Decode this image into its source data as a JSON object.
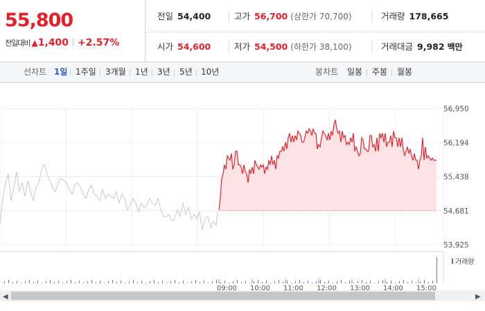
{
  "summary": {
    "current_price": "55,800",
    "change_label": "전일대비",
    "change_arrow": "▲",
    "change_amount": "1,400",
    "change_rate": "+2.57%",
    "colors": {
      "up": "#e5202b",
      "down": "#1a5bd6"
    },
    "stats_row1": [
      {
        "label": "전일",
        "value": "54,400",
        "sub": "",
        "tone": "neutral"
      },
      {
        "label": "고가",
        "value": "56,700",
        "sub": "(상한가 70,700)",
        "tone": "up"
      },
      {
        "label": "거래량",
        "value": "178,665",
        "sub": "",
        "tone": "neutral"
      }
    ],
    "stats_row2": [
      {
        "label": "시가",
        "value": "54,600",
        "sub": "",
        "tone": "up"
      },
      {
        "label": "저가",
        "value": "54,500",
        "sub": "(하한가 38,100)",
        "tone": "up"
      },
      {
        "label": "거래대금",
        "value": "9,982",
        "sub": "백만",
        "tone": "neutral"
      }
    ]
  },
  "toolbar": {
    "line_label": "선차트",
    "line_periods": [
      "1일",
      "1주일",
      "3개월",
      "1년",
      "3년",
      "5년",
      "10년"
    ],
    "active_period": "1일",
    "candle_label": "봉차트",
    "candle_periods": [
      "일봉",
      "주봉",
      "월봉"
    ]
  },
  "chart_data": {
    "type": "line",
    "title": "",
    "y_ticks": [
      "56,950",
      "56,194",
      "55,438",
      "54,681",
      "53,925"
    ],
    "ylim": [
      53925,
      56950
    ],
    "x_ticks": [
      "09:00",
      "10:00",
      "11:00",
      "12:00",
      "13:00",
      "14:00",
      "15:00"
    ],
    "baseline": 54681,
    "colors": {
      "today": "#e8232e",
      "today_fill": "#fde3e4",
      "previous": "#c8c8c8",
      "volume": "#7a6aa8"
    },
    "volume_legend": "거래량",
    "series": [
      {
        "role": "previous-day",
        "x": [
          0,
          4,
          8,
          12,
          16,
          20,
          24,
          28,
          32,
          36,
          40,
          44,
          48,
          52,
          56,
          60,
          64,
          68,
          72,
          76,
          80,
          84,
          88,
          92,
          96,
          100,
          104,
          108,
          112,
          116,
          120,
          124,
          128,
          132,
          136,
          140,
          144,
          148,
          152,
          156,
          160,
          164,
          168,
          172,
          176,
          180,
          184,
          188,
          192,
          196,
          200,
          204,
          208,
          212,
          216,
          220,
          224,
          228,
          232,
          236,
          240,
          244,
          248,
          252,
          256,
          260,
          264,
          268,
          272,
          276,
          280,
          284,
          288,
          292,
          296,
          300,
          304,
          308,
          312,
          314
        ],
        "values": [
          54400,
          54950,
          55300,
          55500,
          54900,
          55200,
          55550,
          55100,
          55300,
          55000,
          55350,
          55100,
          54900,
          55200,
          55300,
          55600,
          55700,
          55500,
          55350,
          55200,
          55100,
          55300,
          55400,
          55350,
          55300,
          55150,
          55050,
          55250,
          55300,
          55200,
          55050,
          54950,
          55150,
          55250,
          55050,
          55000,
          54900,
          55150,
          54950,
          55050,
          55000,
          54950,
          55100,
          54850,
          55050,
          54950,
          54700,
          54800,
          54950,
          54850,
          54650,
          54850,
          54750,
          54800,
          54950,
          54850,
          54800,
          54950,
          54700,
          54550,
          54550,
          54600,
          54450,
          54500,
          54700,
          54550,
          54850,
          54600,
          54750,
          54500,
          54600,
          54500,
          54650,
          54250,
          54500,
          54550,
          54300,
          54450,
          54350,
          54650
        ]
      },
      {
        "role": "today",
        "x": [
          316,
          318,
          320,
          322,
          324,
          326,
          328,
          330,
          332,
          334,
          336,
          338,
          340,
          342,
          344,
          346,
          348,
          350,
          352,
          354,
          356,
          358,
          360,
          362,
          364,
          366,
          368,
          370,
          372,
          374,
          376,
          378,
          380,
          382,
          384,
          386,
          388,
          390,
          392,
          394,
          396,
          398,
          400,
          402,
          404,
          406,
          408,
          410,
          412,
          414,
          416,
          418,
          420,
          422,
          424,
          426,
          428,
          430,
          432,
          434,
          436,
          438,
          440,
          442,
          444,
          446,
          448,
          450,
          452,
          454,
          456,
          458,
          460,
          462,
          464,
          466,
          468,
          470,
          472,
          474,
          476,
          478,
          480,
          482,
          484,
          486,
          488,
          490,
          492,
          494,
          496,
          498,
          500,
          502,
          504,
          506,
          508,
          510,
          512,
          514,
          516,
          518,
          520,
          522,
          524,
          526,
          528,
          530,
          532,
          534,
          536,
          538,
          540,
          542,
          544,
          546,
          548,
          550,
          552,
          554,
          556,
          558,
          560,
          562,
          564,
          566,
          568,
          570,
          572,
          574,
          576,
          578,
          580,
          582,
          584,
          586,
          588,
          590,
          592,
          594,
          596,
          598,
          600,
          602,
          604,
          606,
          608,
          610,
          612,
          614,
          616,
          618,
          620,
          622,
          624,
          626,
          628,
          630
        ],
        "values": [
          54700,
          54950,
          55400,
          55500,
          55700,
          55600,
          55900,
          55850,
          55800,
          55950,
          55600,
          55700,
          56000,
          56000,
          55700,
          55700,
          55650,
          55500,
          55700,
          55550,
          55500,
          55300,
          55600,
          55500,
          55650,
          55500,
          55800,
          55700,
          55650,
          55600,
          55700,
          55650,
          55700,
          55500,
          55650,
          55600,
          55800,
          55700,
          55900,
          55700,
          55800,
          55600,
          55900,
          55850,
          56000,
          56000,
          56100,
          56000,
          56200,
          56050,
          56300,
          56400,
          56200,
          56350,
          56200,
          56350,
          56250,
          56450,
          56400,
          56350,
          56200,
          56200,
          56300,
          56450,
          56400,
          56500,
          56450,
          56350,
          56500,
          56400,
          56400,
          56050,
          56150,
          56100,
          56300,
          56450,
          56400,
          56350,
          56250,
          56400,
          56250,
          56450,
          56350,
          56600,
          56700,
          56500,
          56400,
          56450,
          56200,
          56450,
          56300,
          56350,
          56150,
          56200,
          56150,
          56300,
          56200,
          56400,
          56000,
          56100,
          56000,
          55900,
          55950,
          56300,
          56250,
          56050,
          56050,
          56000,
          56000,
          56350,
          56350,
          56100,
          56150,
          56000,
          56300,
          56000,
          56400,
          56300,
          56400,
          56200,
          56400,
          56100,
          56200,
          56200,
          56350,
          56100,
          56450,
          56300,
          56300,
          56100,
          56300,
          56100,
          56300,
          56050,
          55900,
          56000,
          56100,
          55950,
          56050,
          55900,
          55800,
          55950,
          55800,
          55800,
          55600,
          55800,
          55900,
          56300,
          55800,
          56100,
          55850,
          55900,
          55850,
          55800,
          55850,
          55800,
          55800,
          55800
        ]
      }
    ]
  }
}
